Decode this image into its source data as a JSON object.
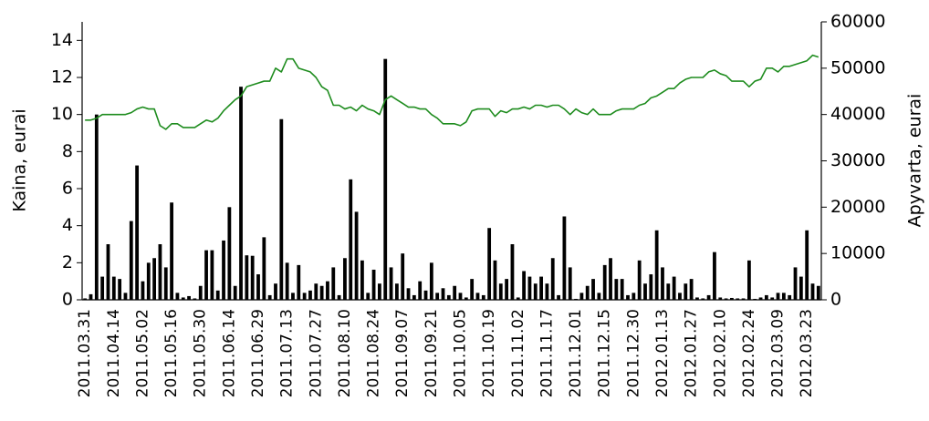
{
  "chart_data": {
    "type": "combo",
    "ylabel": "Kaina, eurai",
    "y2label": "Apyvarta, eurai",
    "ylim": [
      0,
      15
    ],
    "yticks": [
      0,
      2,
      4,
      6,
      8,
      10,
      12,
      14
    ],
    "y2lim": [
      0,
      60000
    ],
    "y2ticks": [
      0,
      10000,
      20000,
      30000,
      40000,
      50000,
      60000
    ],
    "categories": [
      "2011.03.31",
      null,
      null,
      null,
      null,
      "2011.04.14",
      null,
      null,
      null,
      null,
      "2011.05.02",
      null,
      null,
      null,
      null,
      "2011.05.16",
      null,
      null,
      null,
      null,
      "2011.05.30",
      null,
      null,
      null,
      null,
      "2011.06.14",
      null,
      null,
      null,
      null,
      "2011.06.29",
      null,
      null,
      null,
      null,
      "2011.07.13",
      null,
      null,
      null,
      null,
      "2011.07.27",
      null,
      null,
      null,
      null,
      "2011.08.10",
      null,
      null,
      null,
      null,
      "2011.08.24",
      null,
      null,
      null,
      null,
      "2011.09.07",
      null,
      null,
      null,
      null,
      "2011.09.21",
      null,
      null,
      null,
      null,
      "2011.10.05",
      null,
      null,
      null,
      null,
      "2011.10.19",
      null,
      null,
      null,
      null,
      "2011.11.02",
      null,
      null,
      null,
      null,
      "2011.11.17",
      null,
      null,
      null,
      null,
      "2011.12.01",
      null,
      null,
      null,
      null,
      "2011.12.15",
      null,
      null,
      null,
      null,
      "2011.12.30",
      null,
      null,
      null,
      null,
      "2012.01.13",
      null,
      null,
      null,
      null,
      "2012.01.27",
      null,
      null,
      null,
      null,
      "2012.02.10",
      null,
      null,
      null,
      null,
      "2012.02.24",
      null,
      null,
      null,
      null,
      "2012.03.09",
      null,
      null,
      null,
      null,
      "2012.03.23",
      null,
      null
    ],
    "series": [
      {
        "type": "bar",
        "axis": "y2",
        "color": "#000000",
        "values": [
          300,
          1200,
          40000,
          5000,
          12000,
          5000,
          4500,
          1500,
          17000,
          29000,
          4000,
          8000,
          9000,
          12000,
          7000,
          21000,
          1500,
          500,
          800,
          300,
          3000,
          10700,
          10700,
          2000,
          12800,
          20000,
          3000,
          46000,
          9600,
          9500,
          5500,
          13500,
          1000,
          3500,
          39000,
          8000,
          1500,
          7500,
          1500,
          2000,
          3500,
          3000,
          4000,
          7000,
          1000,
          9000,
          26000,
          19000,
          8500,
          1500,
          6500,
          3500,
          52000,
          7000,
          3500,
          10000,
          2500,
          1000,
          4000,
          2000,
          8000,
          1500,
          2500,
          1000,
          3000,
          1500,
          500,
          4500,
          1500,
          1000,
          15500,
          8500,
          3500,
          4500,
          12000,
          500,
          6200,
          5000,
          3500,
          5000,
          3500,
          9000,
          1000,
          18000,
          7000,
          200,
          1500,
          3000,
          4500,
          1500,
          7500,
          9000,
          4500,
          4500,
          1000,
          1500,
          8500,
          3500,
          5500,
          15000,
          7000,
          3500,
          5000,
          1500,
          3500,
          4500,
          500,
          300,
          1000,
          10300,
          500,
          300,
          400,
          300,
          300,
          8500,
          200,
          500,
          1000,
          500,
          1500,
          1500,
          1000,
          7000,
          5000,
          15000,
          3500,
          3000
        ]
      },
      {
        "type": "line",
        "color": "#1e8c1e",
        "values": [
          9.7,
          9.7,
          9.8,
          10.0,
          10.0,
          10.0,
          10.0,
          10.0,
          10.1,
          10.3,
          10.4,
          10.3,
          10.3,
          9.4,
          9.2,
          9.5,
          9.5,
          9.3,
          9.3,
          9.3,
          9.5,
          9.7,
          9.6,
          9.8,
          10.2,
          10.5,
          10.8,
          11.0,
          11.5,
          11.6,
          11.7,
          11.8,
          11.8,
          12.5,
          12.3,
          13.0,
          13.0,
          12.5,
          12.4,
          12.3,
          12.0,
          11.5,
          11.3,
          10.5,
          10.5,
          10.3,
          10.4,
          10.2,
          10.5,
          10.3,
          10.2,
          10.0,
          10.8,
          11.0,
          10.8,
          10.6,
          10.4,
          10.4,
          10.3,
          10.3,
          10.0,
          9.8,
          9.5,
          9.5,
          9.5,
          9.4,
          9.6,
          10.2,
          10.3,
          10.3,
          10.3,
          9.9,
          10.2,
          10.1,
          10.3,
          10.3,
          10.4,
          10.3,
          10.5,
          10.5,
          10.4,
          10.5,
          10.5,
          10.3,
          10.0,
          10.3,
          10.1,
          10.0,
          10.3,
          10.0,
          10.0,
          10.0,
          10.2,
          10.3,
          10.3,
          10.3,
          10.5,
          10.6,
          10.9,
          11.0,
          11.2,
          11.4,
          11.4,
          11.7,
          11.9,
          12.0,
          12.0,
          12.0,
          12.3,
          12.4,
          12.2,
          12.1,
          11.8,
          11.8,
          11.8,
          11.5,
          11.8,
          11.9,
          12.5,
          12.5,
          12.3,
          12.6,
          12.6,
          12.7,
          12.8,
          12.9,
          13.2,
          13.1
        ]
      }
    ]
  }
}
